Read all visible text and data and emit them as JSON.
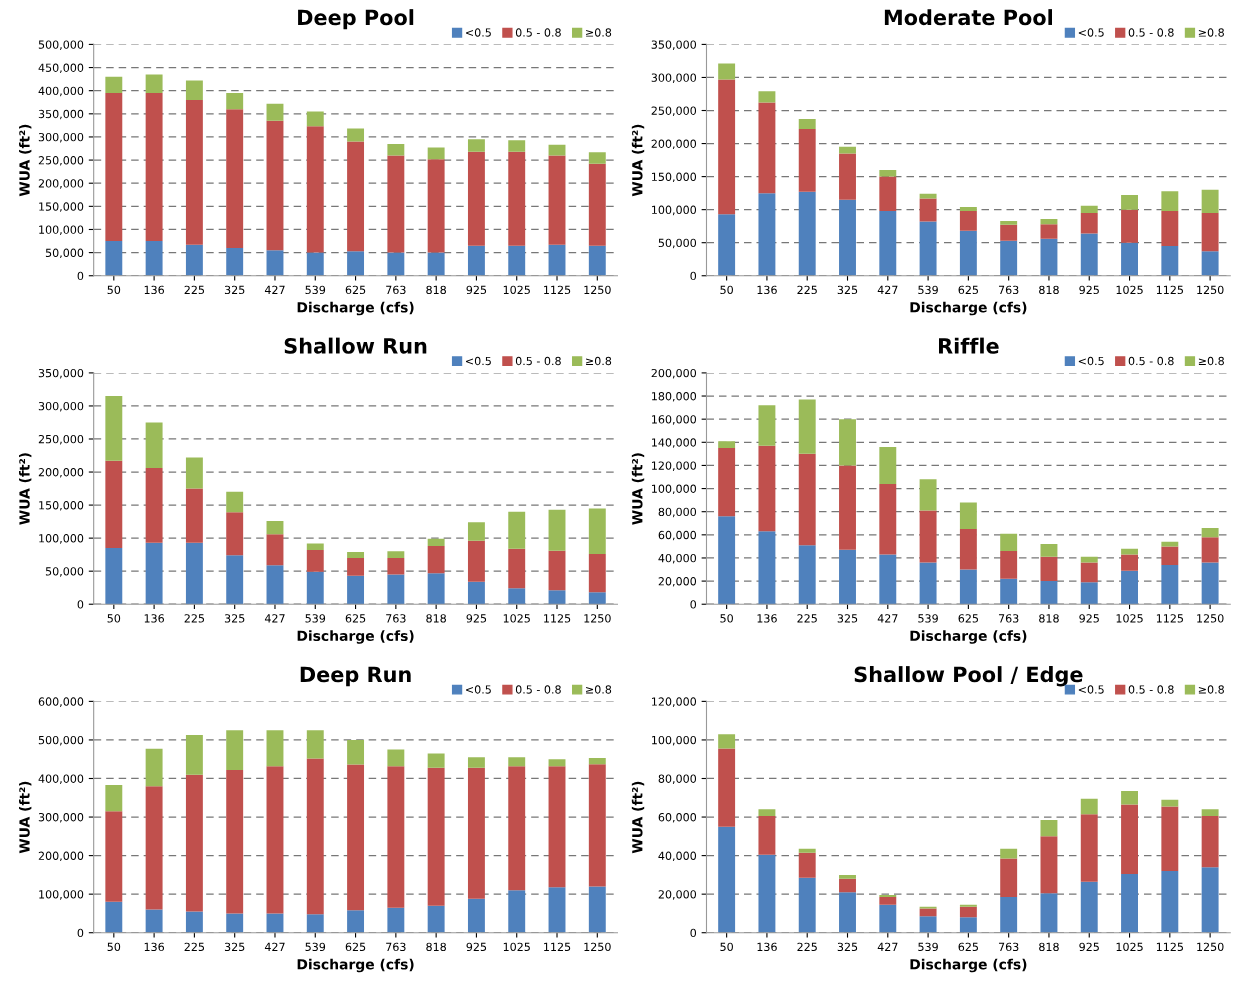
{
  "chart_data": [
    {
      "type": "bar",
      "title": "Deep Pool",
      "xlabel": "Discharge (cfs)",
      "ylabel": "WUA (ft²)",
      "stacked": true,
      "grid": "y",
      "legend": "top right",
      "categories": [
        "50",
        "136",
        "225",
        "325",
        "427",
        "539",
        "625",
        "763",
        "818",
        "925",
        "1025",
        "1125",
        "1250"
      ],
      "ylim": [
        0,
        500000
      ],
      "yticks": [
        {
          "value": 0,
          "label": "0"
        },
        {
          "value": 50000,
          "label": "50,000"
        },
        {
          "value": 100000,
          "label": "100,000"
        },
        {
          "value": 150000,
          "label": "150,000"
        },
        {
          "value": 200000,
          "label": "200,000"
        },
        {
          "value": 250000,
          "label": "250,000"
        },
        {
          "value": 300000,
          "label": "300,000"
        },
        {
          "value": 350000,
          "label": "350,000"
        },
        {
          "value": 400000,
          "label": "400,000"
        },
        {
          "value": 450000,
          "label": "450,000"
        },
        {
          "value": 500000,
          "label": "500,000"
        }
      ],
      "series": [
        {
          "name": "<0.5",
          "color": "#4f81bd",
          "values": [
            75000,
            75000,
            67000,
            60000,
            55000,
            50000,
            53000,
            50000,
            50000,
            65000,
            65000,
            67000,
            65000
          ]
        },
        {
          "name": "0.5 - 0.8",
          "color": "#c0504d",
          "values": [
            320000,
            320000,
            313000,
            300000,
            280000,
            273000,
            237000,
            210000,
            202000,
            203000,
            203000,
            193000,
            177000
          ]
        },
        {
          "name": "≥0.8",
          "color": "#9bbb59",
          "values": [
            35000,
            40000,
            42000,
            35000,
            37000,
            32000,
            28000,
            25000,
            25000,
            27000,
            25000,
            23000,
            25000
          ]
        }
      ]
    },
    {
      "type": "bar",
      "title": "Moderate Pool",
      "xlabel": "Discharge (cfs)",
      "ylabel": "WUA (ft²)",
      "stacked": true,
      "grid": "y",
      "legend": "top right",
      "categories": [
        "50",
        "136",
        "225",
        "325",
        "427",
        "539",
        "625",
        "763",
        "818",
        "925",
        "1025",
        "1125",
        "1250"
      ],
      "ylim": [
        0,
        350000
      ],
      "yticks": [
        {
          "value": 0,
          "label": "0"
        },
        {
          "value": 50000,
          "label": "50,000"
        },
        {
          "value": 100000,
          "label": "100,000"
        },
        {
          "value": 150000,
          "label": "150,000"
        },
        {
          "value": 200000,
          "label": "200,000"
        },
        {
          "value": 250000,
          "label": "250,000"
        },
        {
          "value": 300000,
          "label": "300,000"
        },
        {
          "value": 350000,
          "label": "350,000"
        }
      ],
      "series": [
        {
          "name": "<0.5",
          "color": "#4f81bd",
          "values": [
            93000,
            125000,
            127000,
            115000,
            98000,
            82000,
            68000,
            53000,
            56000,
            64000,
            50000,
            45000,
            37000
          ]
        },
        {
          "name": "0.5 - 0.8",
          "color": "#c0504d",
          "values": [
            204000,
            137000,
            95000,
            70000,
            52000,
            35000,
            30000,
            24000,
            22000,
            31000,
            50000,
            53000,
            58000
          ]
        },
        {
          "name": "≥0.8",
          "color": "#9bbb59",
          "values": [
            24000,
            17000,
            15000,
            10000,
            10000,
            7000,
            6000,
            6000,
            8000,
            11000,
            22000,
            30000,
            35000
          ]
        }
      ]
    },
    {
      "type": "bar",
      "title": "Shallow Run",
      "xlabel": "Discharge (cfs)",
      "ylabel": "WUA (ft²)",
      "stacked": true,
      "grid": "y",
      "legend": "top right",
      "categories": [
        "50",
        "136",
        "225",
        "325",
        "427",
        "539",
        "625",
        "763",
        "818",
        "925",
        "1025",
        "1125",
        "1250"
      ],
      "ylim": [
        0,
        350000
      ],
      "yticks": [
        {
          "value": 0,
          "label": "0"
        },
        {
          "value": 50000,
          "label": "50,000"
        },
        {
          "value": 100000,
          "label": "100,000"
        },
        {
          "value": 150000,
          "label": "150,000"
        },
        {
          "value": 200000,
          "label": "200,000"
        },
        {
          "value": 250000,
          "label": "250,000"
        },
        {
          "value": 300000,
          "label": "300,000"
        },
        {
          "value": 350000,
          "label": "350,000"
        }
      ],
      "series": [
        {
          "name": "<0.5",
          "color": "#4f81bd",
          "values": [
            85000,
            93000,
            93000,
            74000,
            59000,
            49000,
            43000,
            45000,
            47000,
            34000,
            24000,
            21000,
            18000
          ]
        },
        {
          "name": "0.5 - 0.8",
          "color": "#c0504d",
          "values": [
            132000,
            113000,
            82000,
            65000,
            47000,
            33000,
            27000,
            25000,
            41000,
            62000,
            60000,
            60000,
            58000
          ]
        },
        {
          "name": "≥0.8",
          "color": "#9bbb59",
          "values": [
            98000,
            69000,
            47000,
            31000,
            20000,
            10000,
            9000,
            10000,
            11000,
            28000,
            56000,
            62000,
            69000
          ]
        }
      ]
    },
    {
      "type": "bar",
      "title": "Riffle",
      "xlabel": "Discharge (cfs)",
      "ylabel": "WUA (ft²)",
      "stacked": true,
      "grid": "y",
      "legend": "top right",
      "categories": [
        "50",
        "136",
        "225",
        "325",
        "427",
        "539",
        "625",
        "763",
        "818",
        "925",
        "1025",
        "1125",
        "1250"
      ],
      "ylim": [
        0,
        200000
      ],
      "yticks": [
        {
          "value": 0,
          "label": "0"
        },
        {
          "value": 20000,
          "label": "20,000"
        },
        {
          "value": 40000,
          "label": "40,000"
        },
        {
          "value": 60000,
          "label": "60,000"
        },
        {
          "value": 80000,
          "label": "80,000"
        },
        {
          "value": 100000,
          "label": "100,000"
        },
        {
          "value": 120000,
          "label": "120,000"
        },
        {
          "value": 140000,
          "label": "140,000"
        },
        {
          "value": 160000,
          "label": "160,000"
        },
        {
          "value": 180000,
          "label": "180,000"
        },
        {
          "value": 200000,
          "label": "200,000"
        }
      ],
      "series": [
        {
          "name": "<0.5",
          "color": "#4f81bd",
          "values": [
            76000,
            63000,
            51000,
            47000,
            43000,
            36000,
            30000,
            22000,
            20000,
            19000,
            29000,
            34000,
            36000
          ]
        },
        {
          "name": "0.5 - 0.8",
          "color": "#c0504d",
          "values": [
            59000,
            74000,
            79000,
            73000,
            61000,
            45000,
            35000,
            24000,
            21000,
            17000,
            14000,
            16000,
            22000
          ]
        },
        {
          "name": "≥0.8",
          "color": "#9bbb59",
          "values": [
            6000,
            35000,
            47000,
            40000,
            32000,
            27000,
            23000,
            15000,
            11000,
            5000,
            5000,
            4000,
            8000
          ]
        }
      ]
    },
    {
      "type": "bar",
      "title": "Deep Run",
      "xlabel": "Discharge (cfs)",
      "ylabel": "WUA (ft²)",
      "stacked": true,
      "grid": "y",
      "legend": "top right",
      "categories": [
        "50",
        "136",
        "225",
        "325",
        "427",
        "539",
        "625",
        "763",
        "818",
        "925",
        "1025",
        "1125",
        "1250"
      ],
      "ylim": [
        0,
        600000
      ],
      "yticks": [
        {
          "value": 0,
          "label": "0"
        },
        {
          "value": 100000,
          "label": "100,000"
        },
        {
          "value": 200000,
          "label": "200,000"
        },
        {
          "value": 300000,
          "label": "300,000"
        },
        {
          "value": 400000,
          "label": "400,000"
        },
        {
          "value": 500000,
          "label": "500,000"
        },
        {
          "value": 600000,
          "label": "600,000"
        }
      ],
      "series": [
        {
          "name": "<0.5",
          "color": "#4f81bd",
          "values": [
            80000,
            60000,
            55000,
            50000,
            50000,
            48000,
            58000,
            65000,
            70000,
            88000,
            110000,
            118000,
            120000
          ]
        },
        {
          "name": "0.5 - 0.8",
          "color": "#c0504d",
          "values": [
            235000,
            320000,
            355000,
            372000,
            382000,
            404000,
            378000,
            367000,
            358000,
            340000,
            322000,
            314000,
            317000
          ]
        },
        {
          "name": "≥0.8",
          "color": "#9bbb59",
          "values": [
            68000,
            97000,
            103000,
            103000,
            93000,
            73000,
            64000,
            43000,
            37000,
            27000,
            23000,
            18000,
            16000
          ]
        }
      ]
    },
    {
      "type": "bar",
      "title": "Shallow Pool / Edge",
      "xlabel": "Discharge (cfs)",
      "ylabel": "WUA (ft²)",
      "stacked": true,
      "grid": "y",
      "legend": "top right",
      "categories": [
        "50",
        "136",
        "225",
        "325",
        "427",
        "539",
        "625",
        "763",
        "818",
        "925",
        "1025",
        "1125",
        "1250"
      ],
      "ylim": [
        0,
        120000
      ],
      "yticks": [
        {
          "value": 0,
          "label": "0"
        },
        {
          "value": 20000,
          "label": "20,000"
        },
        {
          "value": 40000,
          "label": "40,000"
        },
        {
          "value": 60000,
          "label": "60,000"
        },
        {
          "value": 80000,
          "label": "80,000"
        },
        {
          "value": 100000,
          "label": "100,000"
        },
        {
          "value": 120000,
          "label": "120,000"
        }
      ],
      "series": [
        {
          "name": "<0.5",
          "color": "#4f81bd",
          "values": [
            55000,
            40500,
            28500,
            21000,
            14500,
            8500,
            8000,
            18500,
            20500,
            26500,
            30500,
            32000,
            34000
          ]
        },
        {
          "name": "0.5 - 0.8",
          "color": "#c0504d",
          "values": [
            40500,
            20000,
            13000,
            7000,
            4000,
            4000,
            5500,
            20000,
            29500,
            35000,
            36000,
            33500,
            26500
          ]
        },
        {
          "name": "≥0.8",
          "color": "#9bbb59",
          "values": [
            7500,
            3500,
            2000,
            2000,
            1000,
            1000,
            1000,
            5000,
            8500,
            8000,
            7000,
            3500,
            3500
          ]
        }
      ]
    }
  ]
}
